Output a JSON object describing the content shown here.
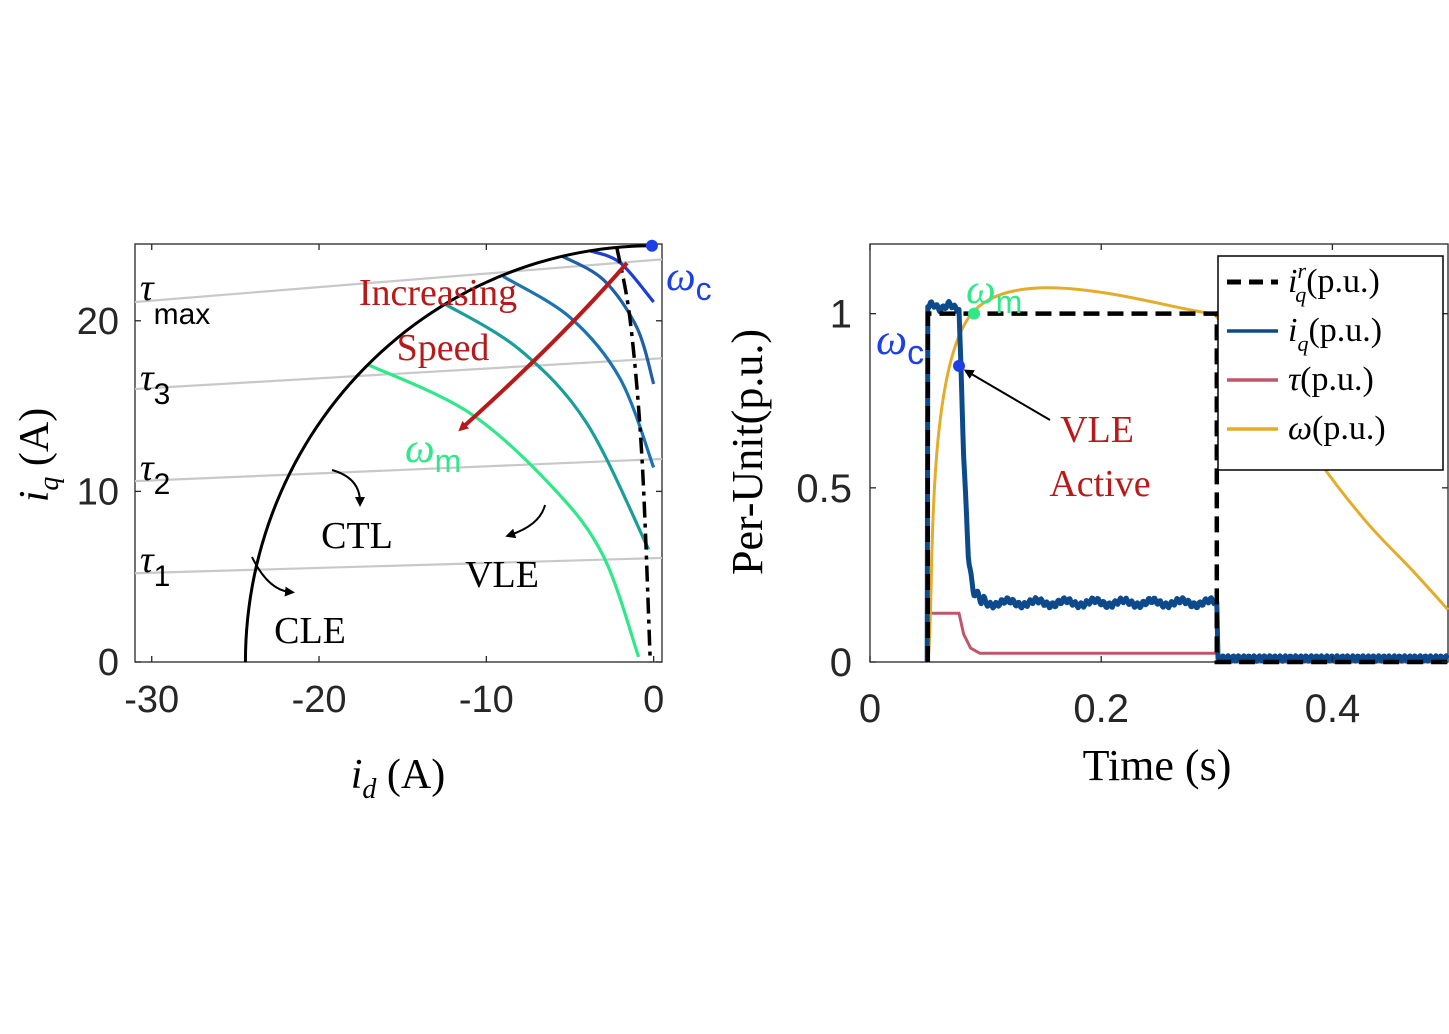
{
  "chart_data": [
    {
      "type": "line",
      "title": "",
      "xlabel": "i_d (A)",
      "ylabel": "i_q (A)",
      "xlim": [
        -31,
        0.5
      ],
      "ylim": [
        0,
        24.5
      ],
      "xticks": [
        "-30",
        "-20",
        "-10",
        "0"
      ],
      "yticks": [
        "0",
        "10",
        "20"
      ],
      "grid": false,
      "current_limit_radius": 24.4,
      "torque_lines": [
        {
          "label_main": "τ",
          "label_sub": "1",
          "y_left": 5.2,
          "y_right": 6.1
        },
        {
          "label_main": "τ",
          "label_sub": "2",
          "y_left": 10.6,
          "y_right": 11.9
        },
        {
          "label_main": "τ",
          "label_sub": "3",
          "y_left": 16.0,
          "y_right": 17.8
        },
        {
          "label_main": "τ",
          "label_sub": "max",
          "y_left": 21.1,
          "y_right": 23.6
        }
      ],
      "voltage_limit_curves": [
        {
          "color": "#2ee889",
          "points": [
            [
              -17,
              17.4
            ],
            [
              -11,
              14.6
            ],
            [
              -6,
              10.2
            ],
            [
              -3,
              6.2
            ],
            [
              -0.9,
              0.3
            ]
          ]
        },
        {
          "color": "#1a9e9a",
          "points": [
            [
              -12.5,
              21.0
            ],
            [
              -8,
              18.3
            ],
            [
              -4,
              14.0
            ],
            [
              -0.3,
              6.6
            ]
          ]
        },
        {
          "color": "#1c73b3",
          "points": [
            [
              -9,
              22.6
            ],
            [
              -5,
              20.2
            ],
            [
              -2,
              16.6
            ],
            [
              0,
              11.4
            ]
          ]
        },
        {
          "color": "#1f5fa8",
          "points": [
            [
              -5.5,
              23.8
            ],
            [
              -3,
              22.4
            ],
            [
              -1,
              19.6
            ],
            [
              0,
              16.3
            ]
          ]
        },
        {
          "color": "#1b3fd6",
          "points": [
            [
              -3.8,
              24.1
            ],
            [
              -2,
              23.4
            ],
            [
              0,
              21.1
            ]
          ]
        }
      ],
      "mtpv_curve": [
        [
          -2.2,
          24.3
        ],
        [
          -1.4,
          20.0
        ],
        [
          -0.7,
          12.0
        ],
        [
          -0.2,
          0
        ]
      ],
      "points": [
        {
          "name": "ω_c",
          "x": -0.1,
          "y": 24.4,
          "color": "#1f3fe6"
        }
      ],
      "labels": {
        "omega_c_main": "ω",
        "omega_c_sub": "c",
        "omega_m_main": "ω",
        "omega_m_sub": "m",
        "increasing_speed_line1": "Increasing",
        "increasing_speed_line2": "Speed",
        "ctl": "CTL",
        "vle": "VLE",
        "cle": "CLE"
      },
      "colors": {
        "torque_line": "#c8c8c8",
        "current_limit": "#000000",
        "mtpv": "#000000",
        "arrow": "#b81a1a",
        "omega_c": "#1f3fe6",
        "omega_m": "#2ee889",
        "annotation_red": "#b81a1a"
      }
    },
    {
      "type": "line",
      "title": "",
      "xlabel": "Time (s)",
      "ylabel": "Per-Unit(p.u.)",
      "xlim": [
        0,
        0.5
      ],
      "ylim": [
        0,
        1.2
      ],
      "xticks": [
        "0",
        "0.2",
        "0.4"
      ],
      "yticks": [
        "0",
        "0.5",
        "1"
      ],
      "grid": false,
      "legend_position": "top-right",
      "series": [
        {
          "name": "i_q^r(p.u.)",
          "legend_base": "i",
          "legend_sub": "q",
          "legend_sup": "r",
          "legend_suffix": "(p.u.)",
          "color": "#000000",
          "dash": true,
          "points": [
            [
              0.05,
              0
            ],
            [
              0.05,
              1.0
            ],
            [
              0.3,
              1.0
            ],
            [
              0.3,
              0
            ],
            [
              0.5,
              0
            ]
          ]
        },
        {
          "name": "i_q(p.u.)",
          "legend_base": "i",
          "legend_sub": "q",
          "legend_sup": "",
          "legend_suffix": "(p.u.)",
          "color": "#0d4a8c",
          "dash": false,
          "points": [
            [
              0.0495,
              0.0
            ],
            [
              0.05,
              1.02
            ],
            [
              0.077,
              1.02
            ],
            [
              0.081,
              0.6
            ],
            [
              0.085,
              0.3
            ],
            [
              0.09,
              0.2
            ],
            [
              0.1,
              0.17
            ],
            [
              0.3,
              0.17
            ],
            [
              0.301,
              0.01
            ],
            [
              0.5,
              0.01
            ]
          ]
        },
        {
          "name": "τ(p.u.)",
          "legend_base": "τ",
          "legend_sub": "",
          "legend_sup": "",
          "legend_suffix": "(p.u.)",
          "color": "#c0566a",
          "dash": false,
          "points": [
            [
              0.05,
              0.0
            ],
            [
              0.052,
              0.14
            ],
            [
              0.077,
              0.14
            ],
            [
              0.081,
              0.08
            ],
            [
              0.087,
              0.04
            ],
            [
              0.095,
              0.025
            ],
            [
              0.3,
              0.025
            ],
            [
              0.302,
              0.0
            ],
            [
              0.5,
              0.0
            ]
          ]
        },
        {
          "name": "ω(p.u.)",
          "legend_base": "ω",
          "legend_sub": "",
          "legend_sup": "",
          "legend_suffix": "(p.u.)",
          "color": "#e3ad2c",
          "dash": false,
          "points": [
            [
              0.05,
              0.0
            ],
            [
              0.088,
              1.0
            ],
            [
              0.3,
              1.0
            ],
            [
              0.3,
              0.99
            ],
            [
              0.345,
              0.8
            ],
            [
              0.39,
              0.57
            ],
            [
              0.43,
              0.4
            ],
            [
              0.47,
              0.26
            ],
            [
              0.5,
              0.15
            ]
          ]
        }
      ],
      "points": [
        {
          "name": "ω_c",
          "x": 0.077,
          "y": 0.85,
          "color": "#1f3fe6"
        },
        {
          "name": "ω_m",
          "x": 0.09,
          "y": 1.0,
          "color": "#2ee889"
        }
      ],
      "labels": {
        "omega_c_main": "ω",
        "omega_c_sub": "c",
        "omega_m_main": "ω",
        "omega_m_sub": "m",
        "vle_active_line1": "VLE",
        "vle_active_line2": "Active"
      }
    }
  ]
}
